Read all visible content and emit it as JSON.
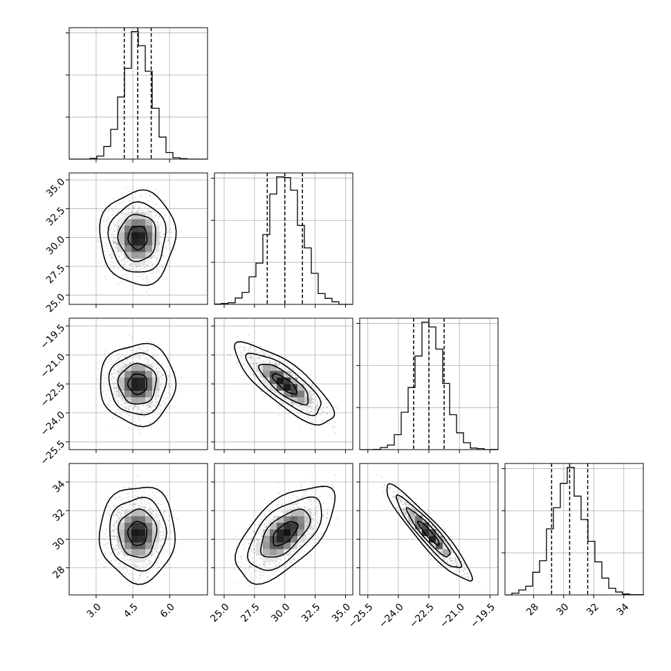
{
  "chart_data": {
    "type": "corner",
    "n_params": 4,
    "parameters": [
      {
        "mean": 4.7,
        "sd": 0.55,
        "range": [
          1.9,
          7.55
        ],
        "ticks": [
          3.0,
          4.5,
          6.0
        ],
        "tick_labels": [
          "3.0",
          "4.5",
          "6.0"
        ],
        "quantiles": [
          4.15,
          4.7,
          5.25
        ]
      },
      {
        "mean": 30.0,
        "sd": 1.45,
        "range": [
          24.2,
          35.6
        ],
        "ticks": [
          25.0,
          27.5,
          30.0,
          32.5,
          35.0
        ],
        "tick_labels": [
          "25.0",
          "27.5",
          "30.0",
          "32.5",
          "35.0"
        ],
        "quantiles": [
          28.55,
          30.0,
          31.45
        ]
      },
      {
        "mean": -22.5,
        "sd": 0.75,
        "range": [
          -25.9,
          -19.1
        ],
        "ticks": [
          -25.5,
          -24.0,
          -22.5,
          -21.0,
          -19.5
        ],
        "tick_labels": [
          "−25.5",
          "−24.0",
          "−22.5",
          "−21.0",
          "−19.5"
        ],
        "quantiles": [
          -23.25,
          -22.5,
          -21.75
        ]
      },
      {
        "mean": 30.4,
        "sd": 1.2,
        "range": [
          26.1,
          35.3
        ],
        "ticks": [
          28,
          30,
          32,
          34
        ],
        "tick_labels": [
          "28",
          "30",
          "32",
          "34"
        ],
        "quantiles": [
          29.2,
          30.4,
          31.6
        ]
      }
    ],
    "correlations": [
      [
        1.0,
        0.0,
        0.0,
        0.0
      ],
      [
        0.0,
        1.0,
        -0.8,
        0.6
      ],
      [
        0.0,
        -0.8,
        1.0,
        -0.93
      ],
      [
        0.0,
        0.6,
        -0.93,
        1.0
      ]
    ],
    "histogram_bins": 20,
    "contour_levels_sigma": [
      0.5,
      1.0,
      1.5,
      2.0
    ],
    "grid": true,
    "colors": {
      "ink": "#000000",
      "grid": "#b0b0b0",
      "points": "#000000"
    }
  }
}
